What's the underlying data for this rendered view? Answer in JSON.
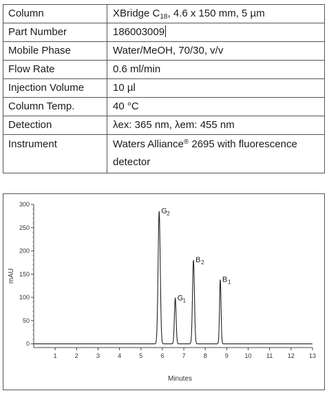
{
  "table": {
    "rows": [
      {
        "label": "Column",
        "value_pre": "XBridge C",
        "value_sub": "18",
        "value_post": ", 4.6 x 150 mm, 5 µm"
      },
      {
        "label": "Part Number",
        "value": "186003009"
      },
      {
        "label": "Mobile Phase",
        "value": "Water/MeOH, 70/30, v/v"
      },
      {
        "label": "Flow Rate",
        "value": "0.6 ml/min"
      },
      {
        "label": "Injection Volume",
        "value": "10 µl"
      },
      {
        "label": "Column Temp.",
        "value": "40 °C"
      },
      {
        "label": "Detection",
        "value": "λex:  365 nm, λem:  455 nm"
      },
      {
        "label": "Instrument",
        "value_pre": "Waters Alliance",
        "value_sup": "®",
        "value_post": " 2695 with fluorescence detector"
      }
    ]
  },
  "chart_data": {
    "type": "line",
    "xlabel": "Minutes",
    "ylabel": "mAU",
    "xlim": [
      0,
      13
    ],
    "ylim": [
      -8,
      300
    ],
    "x_ticks": [
      1,
      2,
      3,
      4,
      5,
      6,
      7,
      8,
      9,
      10,
      11,
      12,
      13
    ],
    "y_ticks": [
      0,
      50,
      100,
      150,
      200,
      250,
      300
    ],
    "grid": false,
    "baseline": 0,
    "peaks": [
      {
        "label": "G",
        "sub": "2",
        "x": 5.85,
        "y": 285,
        "width": 0.05
      },
      {
        "label": "G",
        "sub": "1",
        "x": 6.6,
        "y": 98,
        "width": 0.04
      },
      {
        "label": "B",
        "sub": "2",
        "x": 7.45,
        "y": 180,
        "width": 0.045
      },
      {
        "label": "B",
        "sub": "1",
        "x": 8.7,
        "y": 138,
        "width": 0.035
      }
    ]
  }
}
